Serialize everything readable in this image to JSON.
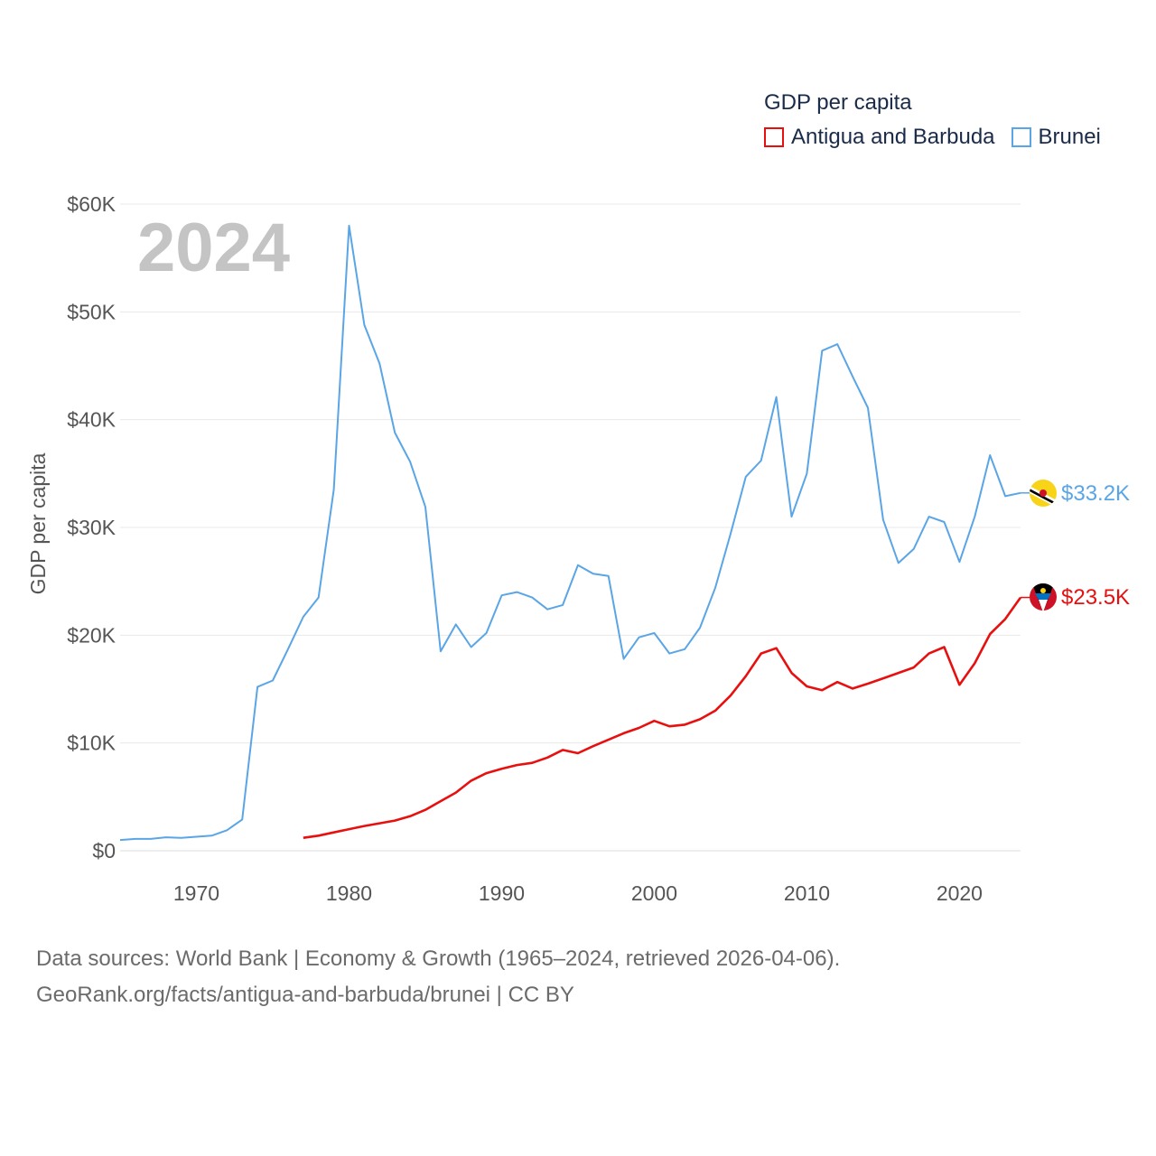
{
  "chart_data": {
    "type": "line",
    "title": "",
    "year_label": "2024",
    "ylabel": "GDP per capita",
    "xlabel": "",
    "xlim": [
      1965,
      2024
    ],
    "ylim": [
      0,
      60000
    ],
    "x_ticks": [
      1970,
      1980,
      1990,
      2000,
      2010,
      2020
    ],
    "y_ticks": [
      {
        "value": 0,
        "label": "$0"
      },
      {
        "value": 10000,
        "label": "$10K"
      },
      {
        "value": 20000,
        "label": "$20K"
      },
      {
        "value": 30000,
        "label": "$30K"
      },
      {
        "value": 40000,
        "label": "$40K"
      },
      {
        "value": 50000,
        "label": "$50K"
      },
      {
        "value": 60000,
        "label": "$60K"
      }
    ],
    "legend_title": "GDP per capita",
    "series": [
      {
        "name": "Antigua and Barbuda",
        "color": "#e8100f",
        "end_label": "$23.5K",
        "flag_icon": "antigua-and-barbuda-flag-icon",
        "x": [
          1977,
          1978,
          1979,
          1980,
          1981,
          1982,
          1983,
          1984,
          1985,
          1986,
          1987,
          1988,
          1989,
          1990,
          1991,
          1992,
          1993,
          1994,
          1995,
          1996,
          1997,
          1998,
          1999,
          2000,
          2001,
          2002,
          2003,
          2004,
          2005,
          2006,
          2007,
          2008,
          2009,
          2010,
          2011,
          2012,
          2013,
          2014,
          2015,
          2016,
          2017,
          2018,
          2019,
          2020,
          2021,
          2022,
          2023,
          2024
        ],
        "values": [
          1200,
          1400,
          1700,
          2000,
          2300,
          2550,
          2800,
          3200,
          3800,
          4600,
          5400,
          6500,
          7200,
          7600,
          7950,
          8150,
          8650,
          9350,
          9050,
          9700,
          10300,
          10900,
          11400,
          12050,
          11550,
          11700,
          12200,
          13000,
          14400,
          16200,
          18300,
          18800,
          16500,
          15250,
          14900,
          15650,
          15050,
          15500,
          16000,
          16500,
          17000,
          18300,
          18900,
          15400,
          17400,
          20100,
          21500,
          23500
        ]
      },
      {
        "name": "Brunei",
        "color": "#5aa5e6",
        "end_label": "$33.2K",
        "flag_icon": "brunei-flag-icon",
        "x": [
          1965,
          1966,
          1967,
          1968,
          1969,
          1970,
          1971,
          1972,
          1973,
          1974,
          1975,
          1976,
          1977,
          1978,
          1979,
          1980,
          1981,
          1982,
          1983,
          1984,
          1985,
          1986,
          1987,
          1988,
          1989,
          1990,
          1991,
          1992,
          1993,
          1994,
          1995,
          1996,
          1997,
          1998,
          1999,
          2000,
          2001,
          2002,
          2003,
          2004,
          2005,
          2006,
          2007,
          2008,
          2009,
          2010,
          2011,
          2012,
          2013,
          2014,
          2015,
          2016,
          2017,
          2018,
          2019,
          2020,
          2021,
          2022,
          2023,
          2024
        ],
        "values": [
          1000,
          1100,
          1100,
          1250,
          1200,
          1300,
          1400,
          1900,
          2900,
          15200,
          15800,
          18700,
          21700,
          23500,
          33500,
          58000,
          48800,
          45200,
          38800,
          36100,
          31900,
          18500,
          21000,
          18900,
          20200,
          23700,
          24000,
          23500,
          22400,
          22800,
          26500,
          25700,
          25500,
          17800,
          19800,
          20200,
          18300,
          18700,
          20700,
          24400,
          29400,
          34700,
          36200,
          42100,
          31000,
          35000,
          46400,
          47000,
          44000,
          41100,
          30700,
          26700,
          28000,
          31000,
          30500,
          26800,
          31000,
          36700,
          32900,
          33200
        ]
      }
    ]
  },
  "footer": {
    "line1": "Data sources: World Bank | Economy & Growth (1965–2024, retrieved 2026-04-06).",
    "line2": "GeoRank.org/facts/antigua-and-barbuda/brunei | CC BY"
  }
}
